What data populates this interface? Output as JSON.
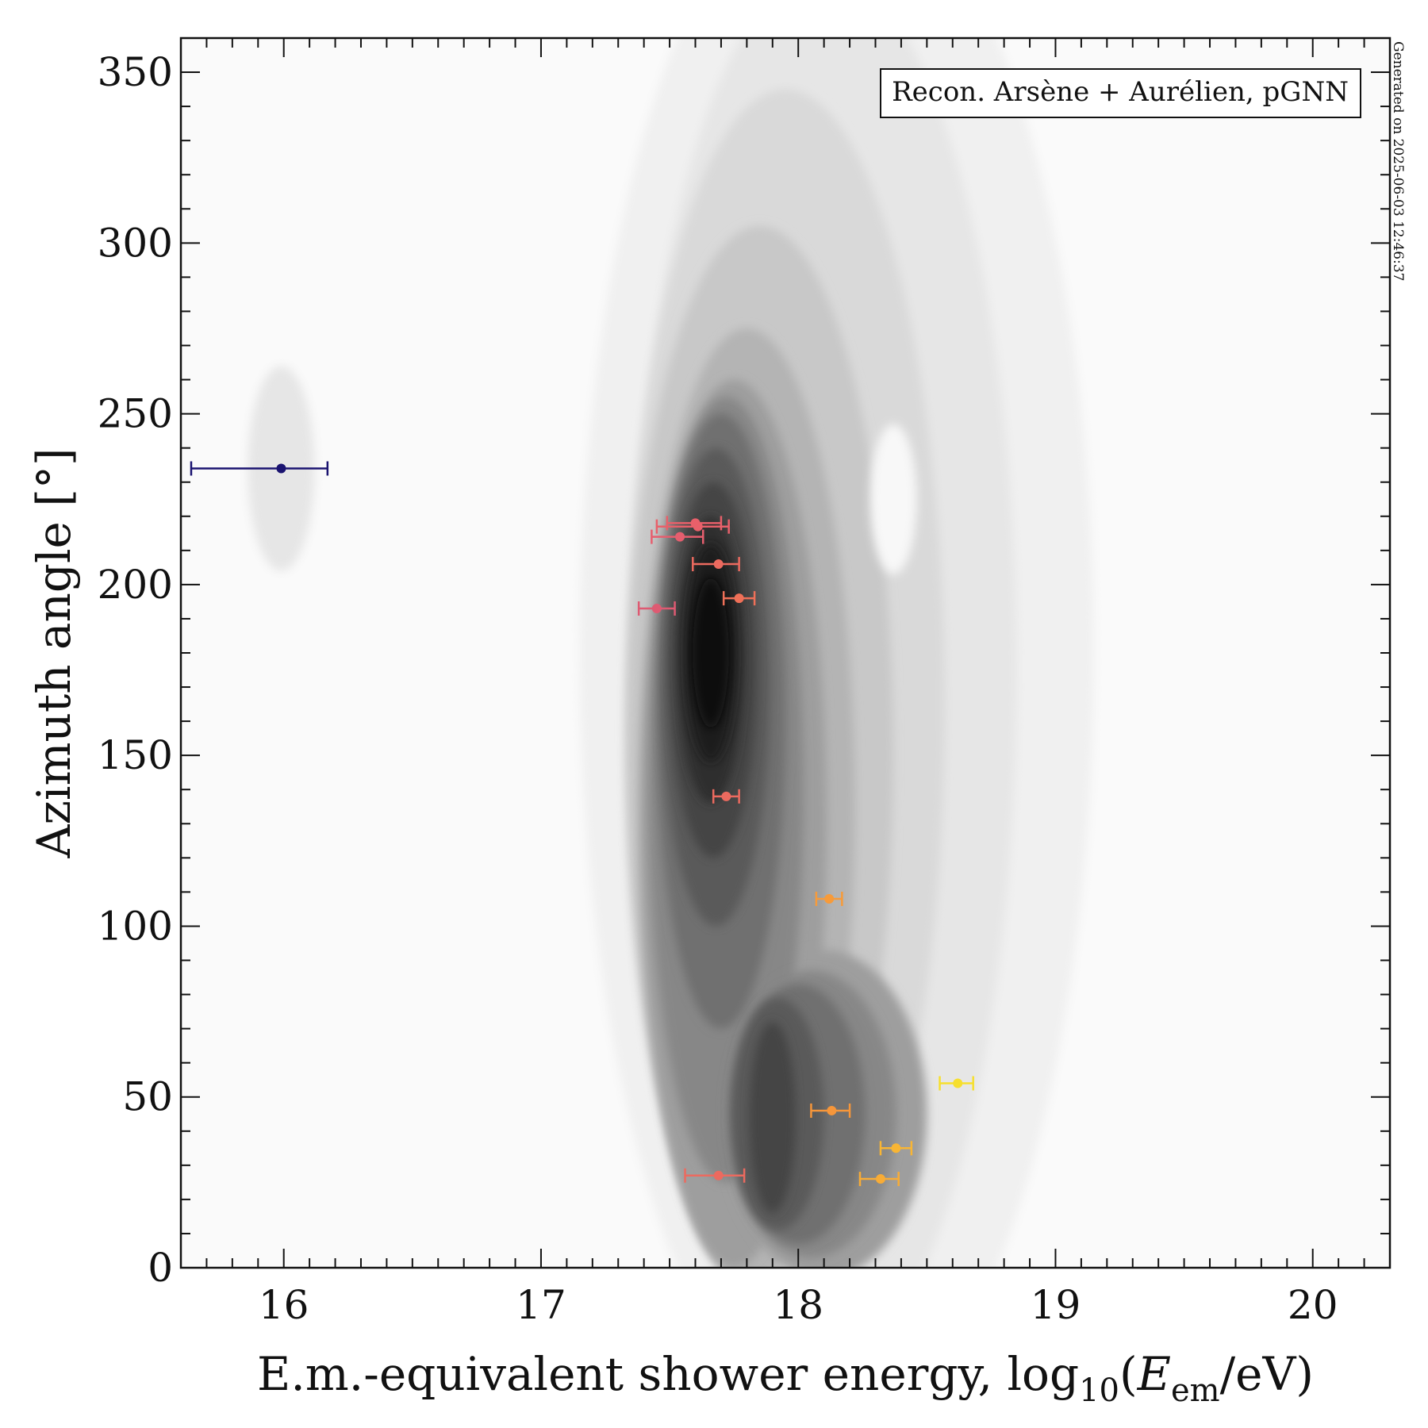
{
  "chart_data": {
    "type": "scatter",
    "xlabel_main": "E.m.-equivalent shower energy, log",
    "xlabel_sub": "10",
    "xlabel_paren_open": "(",
    "xlabel_E": "E",
    "xlabel_E_sub": "em",
    "xlabel_unit": "/eV)",
    "ylabel": "Azimuth angle [°]",
    "xlim": [
      15.6,
      20.3
    ],
    "ylim": [
      0,
      360
    ],
    "xticks": [
      16,
      17,
      18,
      19,
      20
    ],
    "yticks": [
      0,
      50,
      100,
      150,
      200,
      250,
      300,
      350
    ],
    "grid": false,
    "legend_text": "Recon. Arsène + Aurélien, pGNN",
    "legend_position": "top-right",
    "side_note": "Generated on 2025-06-03 12:46:37",
    "density_background": "grey filled contours",
    "points": [
      {
        "x": 15.99,
        "y": 234,
        "xerr_low": 0.35,
        "xerr_high": 0.18,
        "color": "#1a1370"
      },
      {
        "x": 17.6,
        "y": 218,
        "xerr_low": 0.11,
        "xerr_high": 0.1,
        "color": "#e8606a"
      },
      {
        "x": 17.61,
        "y": 217,
        "xerr_low": 0.16,
        "xerr_high": 0.12,
        "color": "#e8606a"
      },
      {
        "x": 17.54,
        "y": 214,
        "xerr_low": 0.11,
        "xerr_high": 0.09,
        "color": "#e65e6e"
      },
      {
        "x": 17.69,
        "y": 206,
        "xerr_low": 0.1,
        "xerr_high": 0.08,
        "color": "#ec6a5f"
      },
      {
        "x": 17.77,
        "y": 196,
        "xerr_low": 0.06,
        "xerr_high": 0.06,
        "color": "#ef7058"
      },
      {
        "x": 17.45,
        "y": 193,
        "xerr_low": 0.07,
        "xerr_high": 0.07,
        "color": "#de5a72"
      },
      {
        "x": 17.72,
        "y": 138,
        "xerr_low": 0.05,
        "xerr_high": 0.05,
        "color": "#ec6a5f"
      },
      {
        "x": 18.12,
        "y": 108,
        "xerr_low": 0.05,
        "xerr_high": 0.05,
        "color": "#f79b3a"
      },
      {
        "x": 18.62,
        "y": 54,
        "xerr_low": 0.07,
        "xerr_high": 0.06,
        "color": "#f6df2e"
      },
      {
        "x": 18.13,
        "y": 46,
        "xerr_low": 0.08,
        "xerr_high": 0.07,
        "color": "#f6963a"
      },
      {
        "x": 18.38,
        "y": 35,
        "xerr_low": 0.06,
        "xerr_high": 0.06,
        "color": "#f8b534"
      },
      {
        "x": 17.69,
        "y": 27,
        "xerr_low": 0.13,
        "xerr_high": 0.1,
        "color": "#ec6a5f"
      },
      {
        "x": 18.32,
        "y": 26,
        "xerr_low": 0.08,
        "xerr_high": 0.07,
        "color": "#f8ac36"
      }
    ]
  },
  "colors": {
    "plot_background": "#fafafa",
    "axis": "#111111",
    "contour_levels": [
      "#f0f0f0",
      "#e6e6e6",
      "#d9d9d9",
      "#c8c8c8",
      "#b4b4b4",
      "#9e9e9e",
      "#878787",
      "#707070",
      "#5a5a5a",
      "#444444",
      "#2e2e2e",
      "#1a1a1a",
      "#0d0d0d"
    ]
  }
}
